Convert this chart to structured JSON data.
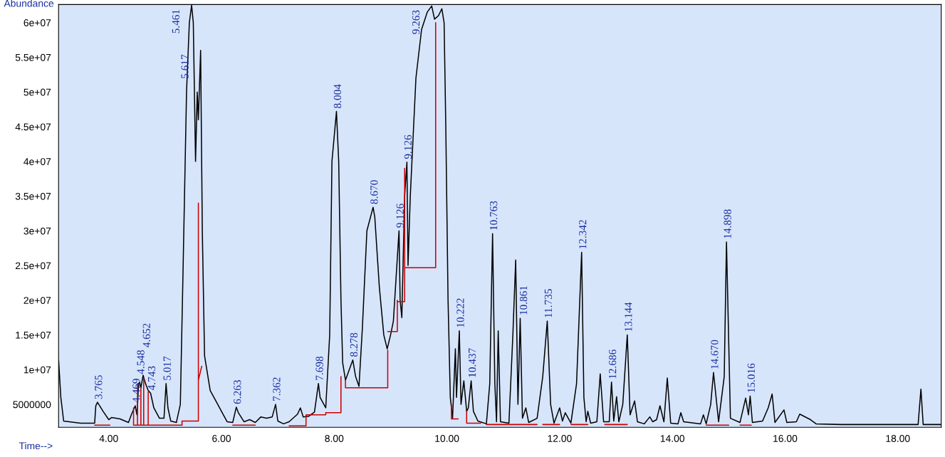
{
  "chart_data": {
    "type": "line",
    "xlabel": "Time-->",
    "ylabel": "Abundance",
    "xlim": [
      3.11,
      18.77
    ],
    "ylim": [
      1700000,
      62600000
    ],
    "xticks": [
      {
        "value": 4,
        "label": "4.00"
      },
      {
        "value": 6,
        "label": "6.00"
      },
      {
        "value": 8,
        "label": "8.00"
      },
      {
        "value": 10,
        "label": "10.00"
      },
      {
        "value": 12,
        "label": "12.00"
      },
      {
        "value": 14,
        "label": "14.00"
      },
      {
        "value": 16,
        "label": "16.00"
      },
      {
        "value": 18,
        "label": "18.00"
      }
    ],
    "yticks": [
      {
        "value": 5000000,
        "label": "5000000"
      },
      {
        "value": 10000000,
        "label": "1e+07"
      },
      {
        "value": 15000000,
        "label": "1.5e+07"
      },
      {
        "value": 20000000,
        "label": "2e+07"
      },
      {
        "value": 25000000,
        "label": "2.5e+07"
      },
      {
        "value": 30000000,
        "label": "3e+07"
      },
      {
        "value": 35000000,
        "label": "3.5e+07"
      },
      {
        "value": 40000000,
        "label": "4e+07"
      },
      {
        "value": 45000000,
        "label": "4.5e+07"
      },
      {
        "value": 50000000,
        "label": "5e+07"
      },
      {
        "value": 55000000,
        "label": "5.5e+07"
      },
      {
        "value": 60000000,
        "label": "6e+07"
      }
    ],
    "grid": false,
    "legend": false,
    "marker": "none",
    "line_style": "solid",
    "series": [
      {
        "color": "#000000",
        "x": [
          3.11,
          3.15,
          3.2,
          3.5,
          3.75,
          3.77,
          3.8,
          3.9,
          4.0,
          4.05,
          4.2,
          4.35,
          4.4,
          4.47,
          4.5,
          4.53,
          4.548,
          4.57,
          4.61,
          4.652,
          4.7,
          4.743,
          4.8,
          4.9,
          4.98,
          5.017,
          5.05,
          5.1,
          5.2,
          5.27,
          5.32,
          5.38,
          5.43,
          5.47,
          5.5,
          5.54,
          5.57,
          5.59,
          5.63,
          5.66,
          5.7,
          5.8,
          5.9,
          6.0,
          6.1,
          6.2,
          6.263,
          6.3,
          6.4,
          6.5,
          6.6,
          6.7,
          6.8,
          6.9,
          6.96,
          7.0,
          7.1,
          7.2,
          7.35,
          7.4,
          7.45,
          7.55,
          7.65,
          7.72,
          7.75,
          7.85,
          7.92,
          7.96,
          8.04,
          8.08,
          8.12,
          8.15,
          8.2,
          8.33,
          8.38,
          8.44,
          8.5,
          8.58,
          8.69,
          8.72,
          8.8,
          8.88,
          8.94,
          9.0,
          9.05,
          9.15,
          9.17,
          9.2,
          9.25,
          9.29,
          9.31,
          9.35,
          9.45,
          9.55,
          9.65,
          9.73,
          9.78,
          9.85,
          9.91,
          9.95,
          9.98,
          10.02,
          10.06,
          10.1,
          10.15,
          10.17,
          10.22,
          10.25,
          10.3,
          10.35,
          10.38,
          10.43,
          10.47,
          10.55,
          10.7,
          10.76,
          10.81,
          10.85,
          10.88,
          10.91,
          10.95,
          11.1,
          11.17,
          11.22,
          11.26,
          11.3,
          11.34,
          11.4,
          11.45,
          11.6,
          11.7,
          11.78,
          11.84,
          11.9,
          12.0,
          12.05,
          12.1,
          12.2,
          12.3,
          12.39,
          12.43,
          12.47,
          12.5,
          12.55,
          12.66,
          12.72,
          12.78,
          12.88,
          12.92,
          12.96,
          13.01,
          13.05,
          13.12,
          13.2,
          13.25,
          13.33,
          13.38,
          13.5,
          13.6,
          13.65,
          13.72,
          13.78,
          13.85,
          13.91,
          13.97,
          14.1,
          14.15,
          14.2,
          14.5,
          14.55,
          14.6,
          14.68,
          14.73,
          14.82,
          14.92,
          14.96,
          15.03,
          15.2,
          15.3,
          15.35,
          15.38,
          15.42,
          15.6,
          15.7,
          15.77,
          15.82,
          15.98,
          16.03,
          16.2,
          16.26,
          16.45,
          16.55,
          17.0,
          18.0,
          18.36,
          18.41,
          18.45,
          18.77
        ],
        "values": [
          11400000,
          6000000,
          2600000,
          2300000,
          2300000,
          4800000,
          5300000,
          4000000,
          2800000,
          3100000,
          2900000,
          2400000,
          3500000,
          4800000,
          3500000,
          8000000,
          8200000,
          7400000,
          9200000,
          8000000,
          7000000,
          6600000,
          4500000,
          3000000,
          3000000,
          8000000,
          4500000,
          2600000,
          2400000,
          5000000,
          25000000,
          50000000,
          60000000,
          62500000,
          60000000,
          40000000,
          50000000,
          46000000,
          56000000,
          30000000,
          12000000,
          7000000,
          5500000,
          4000000,
          2500000,
          2400000,
          4600000,
          3800000,
          2500000,
          2800000,
          2400000,
          3200000,
          3000000,
          3200000,
          5000000,
          2600000,
          2200000,
          2500000,
          3600000,
          4500000,
          3200000,
          3300000,
          3900000,
          8000000,
          6000000,
          4500000,
          15000000,
          40000000,
          47200000,
          40000000,
          20000000,
          11000000,
          8500000,
          11400000,
          9000000,
          7600000,
          16000000,
          30000000,
          33400000,
          32000000,
          22000000,
          15000000,
          13000000,
          15000000,
          17000000,
          30000000,
          20000000,
          17500000,
          35000000,
          39900000,
          25000000,
          35000000,
          52000000,
          59000000,
          61500000,
          62400000,
          60500000,
          61000000,
          62000000,
          60000000,
          45000000,
          20000000,
          6000000,
          3000000,
          13000000,
          6000000,
          15600000,
          5000000,
          8400000,
          4000000,
          4500000,
          8400000,
          4000000,
          2600000,
          2200000,
          8000000,
          29600000,
          8000000,
          2500000,
          15600000,
          2500000,
          2300000,
          15000000,
          25800000,
          5000000,
          17400000,
          3000000,
          4500000,
          2400000,
          3000000,
          9000000,
          17000000,
          5000000,
          2300000,
          4500000,
          2600000,
          3800000,
          2300000,
          8000000,
          26900000,
          6000000,
          2500000,
          4000000,
          2300000,
          2500000,
          9400000,
          2500000,
          2500000,
          8200000,
          2600000,
          6100000,
          2500000,
          5000000,
          15000000,
          3500000,
          5500000,
          2500000,
          2200000,
          3200000,
          2500000,
          2800000,
          4800000,
          2500000,
          8800000,
          2300000,
          2200000,
          3800000,
          2500000,
          2200000,
          3500000,
          2200000,
          5000000,
          9600000,
          2500000,
          9000000,
          28400000,
          3000000,
          2400000,
          5900000,
          3500000,
          6200000,
          2400000,
          2600000,
          4500000,
          6500000,
          2400000,
          4200000,
          2400000,
          2500000,
          3600000,
          2800000,
          2200000,
          2100000,
          2100000,
          2100000,
          7200000,
          2100000,
          2100000
        ]
      },
      {
        "color": "#cc0000",
        "x": [
          3.75,
          4.02,
          null,
          4.44,
          4.44,
          5.3,
          null,
          4.51,
          4.51,
          null,
          4.57,
          4.57,
          null,
          4.62,
          4.62,
          null,
          4.7,
          4.7,
          null,
          5.3,
          5.3,
          5.59,
          5.59,
          null,
          5.59,
          5.65,
          null,
          6.2,
          6.6,
          null,
          7.2,
          7.5,
          7.5,
          7.85,
          7.85,
          8.12,
          8.12,
          null,
          8.2,
          8.2,
          8.95,
          8.95,
          null,
          8.95,
          9.12,
          9.12,
          null,
          9.12,
          9.25,
          9.25,
          null,
          9.25,
          9.8,
          9.8,
          null,
          10.08,
          10.08,
          10.2,
          null,
          10.35,
          10.35,
          10.6,
          null,
          10.7,
          11.6,
          null,
          11.7,
          12.0,
          null,
          12.2,
          12.5,
          null,
          12.8,
          13.2,
          null,
          14.6,
          15.0,
          null,
          15.2,
          15.4
        ],
        "values": [
          2000000,
          2000000,
          null,
          4500000,
          2000000,
          2000000,
          null,
          2000000,
          8000000,
          null,
          2000000,
          7400000,
          null,
          2000000,
          8800000,
          null,
          2000000,
          6800000,
          null,
          2000000,
          2600000,
          2600000,
          34000000,
          null,
          8500000,
          10500000,
          null,
          2000000,
          2000000,
          null,
          1900000,
          1900000,
          3500000,
          3500000,
          3800000,
          3800000,
          9000000,
          null,
          8500000,
          7400000,
          7400000,
          12800000,
          null,
          15500000,
          15500000,
          20000000,
          null,
          19800000,
          19800000,
          39000000,
          null,
          24700000,
          24700000,
          60000000,
          null,
          5000000,
          2900000,
          2900000,
          null,
          4000000,
          2300000,
          2300000,
          null,
          2100000,
          2100000,
          null,
          2100000,
          2100000,
          null,
          2100000,
          2100000,
          null,
          2100000,
          2100000,
          null,
          2000000,
          2000000,
          null,
          2000000,
          2000000
        ]
      }
    ],
    "annotations": [
      {
        "text": "3.765",
        "x": 3.8,
        "y": 5300000
      },
      {
        "text": "4.469",
        "x": 4.47,
        "y": 4800000
      },
      {
        "text": "4.548",
        "x": 4.548,
        "y": 8200000
      },
      {
        "text": "4.652",
        "x": 4.652,
        "y": 9200000
      },
      {
        "text": "4.743",
        "x": 4.743,
        "y": 6600000
      },
      {
        "text": "5.017",
        "x": 5.017,
        "y": 8000000
      },
      {
        "text": "5.461",
        "x": 5.47,
        "y": 62500000
      },
      {
        "text": "5.617",
        "x": 5.63,
        "y": 56000000
      },
      {
        "text": "6.263",
        "x": 6.263,
        "y": 4600000
      },
      {
        "text": "7.362",
        "x": 6.96,
        "y": 5000000
      },
      {
        "text": "7.698",
        "x": 7.72,
        "y": 8000000
      },
      {
        "text": "8.004",
        "x": 8.04,
        "y": 47200000
      },
      {
        "text": "8.278",
        "x": 8.33,
        "y": 11400000
      },
      {
        "text": "8.670",
        "x": 8.69,
        "y": 33400000
      },
      {
        "text": "9.126",
        "x": 9.15,
        "y": 30000000
      },
      {
        "text": "9.126",
        "x": 9.29,
        "y": 39900000
      },
      {
        "text": "9.263",
        "x": 9.73,
        "y": 62400000
      },
      {
        "text": "10.222",
        "x": 10.22,
        "y": 15600000
      },
      {
        "text": "10.437",
        "x": 10.43,
        "y": 8400000
      },
      {
        "text": "10.763",
        "x": 10.81,
        "y": 29600000
      },
      {
        "text": "10.861",
        "x": 11.34,
        "y": 17400000
      },
      {
        "text": "11.735",
        "x": 11.78,
        "y": 17000000
      },
      {
        "text": "12.342",
        "x": 12.39,
        "y": 26900000
      },
      {
        "text": "12.686",
        "x": 12.92,
        "y": 8200000
      },
      {
        "text": "13.144",
        "x": 13.2,
        "y": 15000000
      },
      {
        "text": "14.670",
        "x": 14.73,
        "y": 9600000
      },
      {
        "text": "14.898",
        "x": 14.96,
        "y": 28400000
      },
      {
        "text": "15.016",
        "x": 15.38,
        "y": 6200000
      }
    ]
  }
}
